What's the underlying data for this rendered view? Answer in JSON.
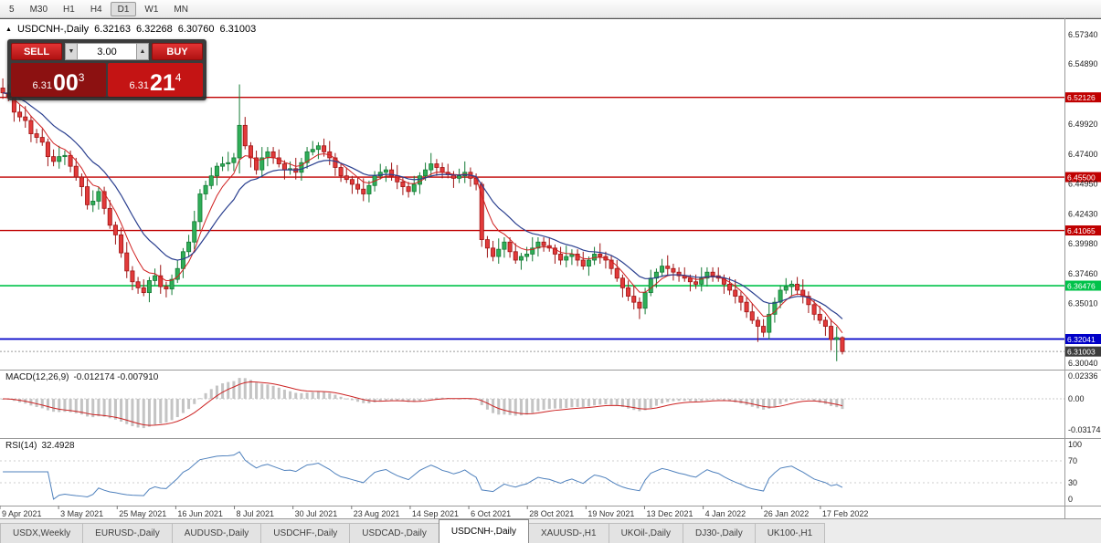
{
  "toolbar": {
    "timeframes": [
      "5",
      "M30",
      "H1",
      "H4",
      "D1",
      "W1",
      "MN"
    ],
    "active": "D1"
  },
  "quote": {
    "collapse_arrow": "▲",
    "symbol": "USDCNH-,Daily",
    "open": "6.32163",
    "high": "6.32268",
    "low": "6.30760",
    "close": "6.31003"
  },
  "trade_panel": {
    "sell_label": "SELL",
    "buy_label": "BUY",
    "volume": "3.00",
    "spinner_up": "▲",
    "spinner_down": "▼",
    "sell_price": {
      "small": "6.31",
      "big": "00",
      "sup": "3"
    },
    "buy_price": {
      "small": "6.31",
      "big": "21",
      "sup": "4"
    }
  },
  "colors": {
    "candle_up_fill": "#2fae58",
    "candle_up_stroke": "#147a35",
    "candle_down_fill": "#e23a3a",
    "candle_down_stroke": "#9e1414",
    "ma_fast": "#d02020",
    "ma_slow": "#2a3f8f",
    "macd_hist": "#c4c4c4",
    "macd_signal": "#cc2222",
    "rsi_line": "#4f81bd",
    "axis_text": "#1a1a1a",
    "level_red": "#c00000",
    "level_green": "#00c24a",
    "level_blue": "#0000c8",
    "bid_badge": "#3c3c3c"
  },
  "levels": [
    {
      "value": 6.52126,
      "label": "6.52126",
      "color": "#c00000",
      "width": 1.4,
      "style": "solid"
    },
    {
      "value": 6.455,
      "label": "6.45500",
      "color": "#c00000",
      "width": 1.4,
      "style": "solid"
    },
    {
      "value": 6.41065,
      "label": "6.41065",
      "color": "#c00000",
      "width": 1.4,
      "style": "solid"
    },
    {
      "value": 6.36476,
      "label": "6.36476",
      "color": "#00c24a",
      "width": 1.6,
      "style": "solid"
    },
    {
      "value": 6.32041,
      "label": "6.32041",
      "color": "#0000c8",
      "width": 1.8,
      "style": "solid"
    },
    {
      "value": 6.31003,
      "label": "6.31003",
      "color": "#9a9a9a",
      "badge_color": "#3c3c3c",
      "width": 1,
      "style": "dotted"
    }
  ],
  "price_axis": {
    "ticks": [
      "6.57340",
      "6.54890",
      "6.49920",
      "6.47400",
      "6.44950",
      "6.42430",
      "6.39980",
      "6.37460",
      "6.35010",
      "6.30040"
    ]
  },
  "chart_data": {
    "type": "candlestick",
    "title": "USDCNH-,Daily",
    "x_range": [
      "9 Apr 2021",
      "25 Feb 2022"
    ],
    "legend_position": "none",
    "grid": false,
    "price_pane": {
      "ylim": [
        6.295,
        6.587
      ],
      "open_first": 6.529,
      "closes": [
        6.525,
        6.521,
        6.509,
        6.505,
        6.502,
        6.491,
        6.488,
        6.484,
        6.472,
        6.468,
        6.472,
        6.473,
        6.464,
        6.455,
        6.447,
        6.432,
        6.435,
        6.443,
        6.429,
        6.415,
        6.407,
        6.392,
        6.377,
        6.368,
        6.363,
        6.359,
        6.369,
        6.373,
        6.364,
        6.362,
        6.37,
        6.379,
        6.393,
        6.401,
        6.418,
        6.441,
        6.448,
        6.456,
        6.464,
        6.466,
        6.467,
        6.471,
        6.498,
        6.481,
        6.471,
        6.461,
        6.471,
        6.476,
        6.471,
        6.466,
        6.461,
        6.462,
        6.459,
        6.467,
        6.476,
        6.478,
        6.481,
        6.476,
        6.471,
        6.463,
        6.456,
        6.453,
        6.449,
        6.445,
        6.441,
        6.448,
        6.456,
        6.459,
        6.461,
        6.456,
        6.451,
        6.447,
        6.443,
        6.449,
        6.456,
        6.461,
        6.466,
        6.463,
        6.459,
        6.457,
        6.454,
        6.456,
        6.459,
        6.454,
        6.449,
        6.403,
        6.396,
        6.389,
        6.395,
        6.401,
        6.393,
        6.386,
        6.389,
        6.391,
        6.396,
        6.401,
        6.398,
        6.396,
        6.391,
        6.386,
        6.389,
        6.391,
        6.386,
        6.381,
        6.386,
        6.391,
        6.389,
        6.386,
        6.379,
        6.371,
        6.363,
        6.356,
        6.351,
        6.346,
        6.359,
        6.371,
        6.376,
        6.381,
        6.379,
        6.376,
        6.373,
        6.371,
        6.368,
        6.366,
        6.371,
        6.376,
        6.373,
        6.371,
        6.366,
        6.361,
        6.356,
        6.351,
        6.343,
        6.336,
        6.331,
        6.326,
        6.341,
        6.351,
        6.361,
        6.364,
        6.366,
        6.361,
        6.356,
        6.349,
        6.341,
        6.336,
        6.331,
        6.32,
        6.3216,
        6.31
      ],
      "wick_high_pattern": [
        0.004,
        0.007,
        0.003,
        0.006,
        0.009,
        0.004
      ],
      "wick_low_pattern": [
        0.005,
        0.003,
        0.008,
        0.004,
        0.006,
        0.007
      ],
      "overrides": {
        "0": {
          "h": 6.537
        },
        "42": {
          "h": 6.532,
          "l": 6.458
        },
        "85": {
          "h": 6.451,
          "l": 6.397
        },
        "113": {
          "l": 6.337
        },
        "134": {
          "l": 6.318
        },
        "147": {
          "l": 6.311
        },
        "148": {
          "l": 6.302
        },
        "149": {
          "h": 6.3227,
          "l": 6.3076
        }
      }
    },
    "indicators": {
      "macd": {
        "label": "MACD(12,26,9)",
        "values": "-0.012174 -0.007910",
        "ticks": [
          "0.02336",
          "0.00",
          "-0.03174"
        ]
      },
      "rsi": {
        "label": "RSI(14)",
        "value": "32.4928",
        "ticks": [
          "100",
          "70",
          "30",
          "0"
        ],
        "levels": [
          70,
          30
        ]
      }
    },
    "date_labels": [
      {
        "text": "9 Apr 2021",
        "bar": 0
      },
      {
        "text": "3 May 2021",
        "bar": 10.4
      },
      {
        "text": "25 May 2021",
        "bar": 20.8
      },
      {
        "text": "16 Jun 2021",
        "bar": 31.2
      },
      {
        "text": "8 Jul 2021",
        "bar": 41.6
      },
      {
        "text": "30 Jul 2021",
        "bar": 52
      },
      {
        "text": "23 Aug 2021",
        "bar": 62.4
      },
      {
        "text": "14 Sep 2021",
        "bar": 72.8
      },
      {
        "text": "6 Oct 2021",
        "bar": 83.2
      },
      {
        "text": "28 Oct 2021",
        "bar": 93.6
      },
      {
        "text": "19 Nov 2021",
        "bar": 104
      },
      {
        "text": "13 Dec 2021",
        "bar": 114.4
      },
      {
        "text": "4 Jan 2022",
        "bar": 124.8
      },
      {
        "text": "26 Jan 2022",
        "bar": 135.2
      },
      {
        "text": "17 Feb 2022",
        "bar": 145.6
      }
    ]
  },
  "tabs": {
    "active": "USDCNH-,Daily",
    "items": [
      "USDX,Weekly",
      "EURUSD-,Daily",
      "AUDUSD-,Daily",
      "USDCHF-,Daily",
      "USDCAD-,Daily",
      "USDCNH-,Daily",
      "XAUUSD-,H1",
      "UKOil-,Daily",
      "DJ30-,Daily",
      "UK100-,H1"
    ]
  }
}
